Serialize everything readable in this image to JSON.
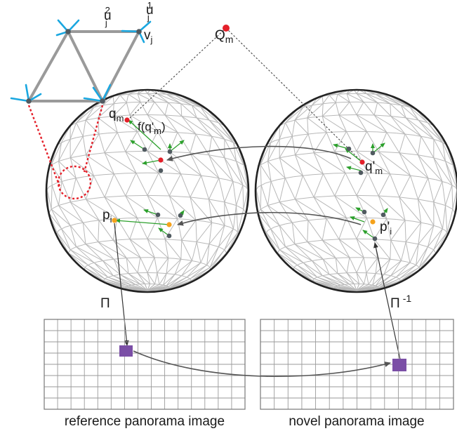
{
  "labels": {
    "Q_m": "Q",
    "Q_m_sub": "m",
    "u_j2_base": "u",
    "u_j2_sub": "j",
    "u_j2_sup": "2",
    "u_j1_base": "u",
    "u_j1_sub": "j",
    "u_j1_sup": "1",
    "v_j_base": "v",
    "v_j_sub": "j",
    "q_m_base": "q",
    "q_m_sub": "m",
    "f_q_m_pre": "f(q'",
    "f_q_m_sub": "m",
    "f_q_m_post": ")",
    "q_prime_m_base": "q'",
    "q_prime_m_sub": "m",
    "p_i_base": "p",
    "p_i_sub": "i",
    "p_prime_i_base": "p'",
    "p_prime_i_sub": "i",
    "pi": "Π",
    "pi_inv_base": "Π",
    "pi_inv_sup": "-1"
  },
  "captions": {
    "reference": "reference panorama image",
    "novel": "novel panorama image"
  },
  "colors": {
    "sphere_outline": "#222222",
    "mesh": "#b8b8b8",
    "point_red": "#e4202a",
    "point_orange": "#f5a21b",
    "node_dark": "#505a60",
    "arrow_green": "#2ca02c",
    "vector_cyan": "#1aa7e0",
    "patch_purple": "#7b4fa6",
    "grid_line": "#9a9a9a",
    "dotted_red": "#e4202a"
  }
}
